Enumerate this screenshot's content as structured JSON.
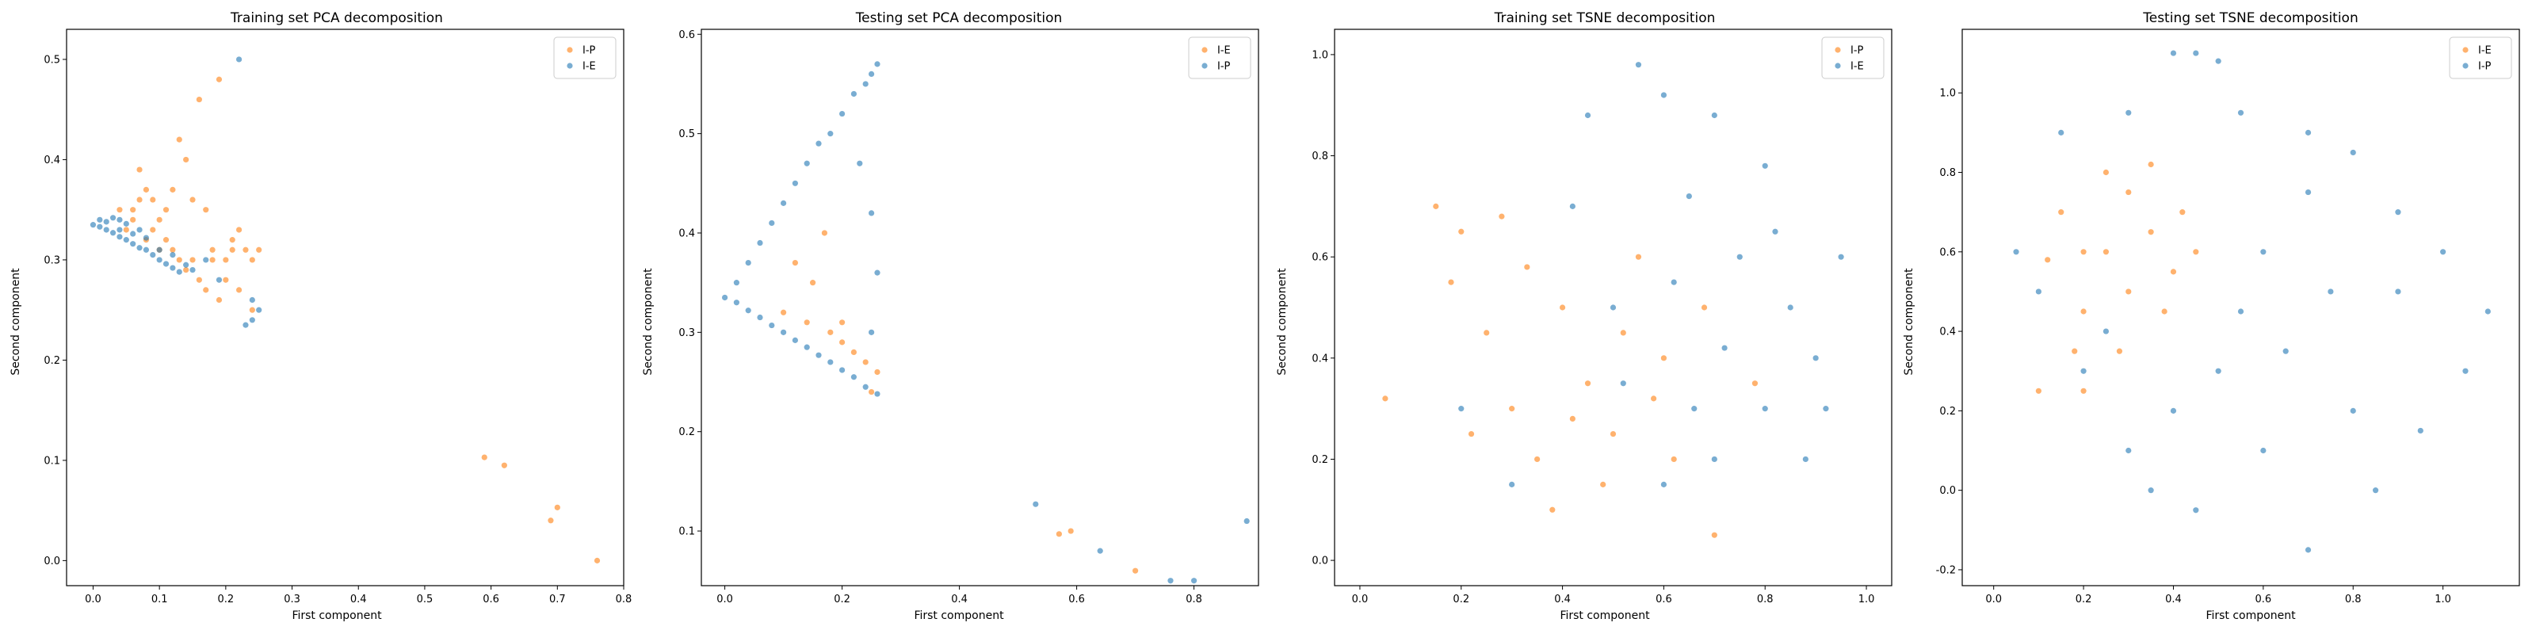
{
  "figure": {
    "panels": [
      {
        "title": "Training set PCA decomposition",
        "xlabel": "First component",
        "ylabel": "Second component"
      },
      {
        "title": "Testing set PCA decomposition",
        "xlabel": "First component",
        "ylabel": "Second component"
      },
      {
        "title": "Training set TSNE decomposition",
        "xlabel": "First component",
        "ylabel": "Second component"
      },
      {
        "title": "Testing set TSNE decomposition",
        "xlabel": "First component",
        "ylabel": "Second component"
      }
    ]
  },
  "chart_data": [
    {
      "type": "scatter",
      "title": "Training set PCA decomposition",
      "xlabel": "First component",
      "ylabel": "Second component",
      "xlim": [
        -0.04,
        0.8
      ],
      "ylim": [
        -0.025,
        0.53
      ],
      "xticks": [
        0.0,
        0.1,
        0.2,
        0.3,
        0.4,
        0.5,
        0.6,
        0.7,
        0.8
      ],
      "yticks": [
        0.0,
        0.1,
        0.2,
        0.3,
        0.4,
        0.5
      ],
      "legend_position": "top-right",
      "series": [
        {
          "name": "I-P",
          "color": "#ff7f0e",
          "points": [
            [
              0.05,
              0.33
            ],
            [
              0.06,
              0.35
            ],
            [
              0.07,
              0.36
            ],
            [
              0.08,
              0.37
            ],
            [
              0.07,
              0.39
            ],
            [
              0.09,
              0.33
            ],
            [
              0.1,
              0.31
            ],
            [
              0.11,
              0.32
            ],
            [
              0.12,
              0.31
            ],
            [
              0.13,
              0.3
            ],
            [
              0.14,
              0.29
            ],
            [
              0.15,
              0.3
            ],
            [
              0.16,
              0.28
            ],
            [
              0.17,
              0.27
            ],
            [
              0.18,
              0.3
            ],
            [
              0.19,
              0.26
            ],
            [
              0.2,
              0.28
            ],
            [
              0.21,
              0.31
            ],
            [
              0.22,
              0.33
            ],
            [
              0.23,
              0.31
            ],
            [
              0.24,
              0.3
            ],
            [
              0.25,
              0.31
            ],
            [
              0.12,
              0.37
            ],
            [
              0.13,
              0.42
            ],
            [
              0.14,
              0.4
            ],
            [
              0.15,
              0.36
            ],
            [
              0.16,
              0.46
            ],
            [
              0.19,
              0.48
            ],
            [
              0.17,
              0.35
            ],
            [
              0.21,
              0.32
            ],
            [
              0.22,
              0.27
            ],
            [
              0.24,
              0.25
            ],
            [
              0.06,
              0.34
            ],
            [
              0.08,
              0.32
            ],
            [
              0.1,
              0.34
            ],
            [
              0.04,
              0.35
            ],
            [
              0.09,
              0.36
            ],
            [
              0.11,
              0.35
            ],
            [
              0.18,
              0.31
            ],
            [
              0.2,
              0.3
            ],
            [
              0.59,
              0.103
            ],
            [
              0.62,
              0.095
            ],
            [
              0.69,
              0.04
            ],
            [
              0.7,
              0.053
            ],
            [
              0.76,
              0.0
            ]
          ]
        },
        {
          "name": "I-E",
          "color": "#1f77b4",
          "points": [
            [
              0.0,
              0.335
            ],
            [
              0.01,
              0.333
            ],
            [
              0.02,
              0.33
            ],
            [
              0.03,
              0.327
            ],
            [
              0.04,
              0.323
            ],
            [
              0.05,
              0.32
            ],
            [
              0.06,
              0.316
            ],
            [
              0.07,
              0.312
            ],
            [
              0.08,
              0.31
            ],
            [
              0.09,
              0.305
            ],
            [
              0.1,
              0.3
            ],
            [
              0.11,
              0.296
            ],
            [
              0.12,
              0.292
            ],
            [
              0.13,
              0.288
            ],
            [
              0.02,
              0.338
            ],
            [
              0.04,
              0.34
            ],
            [
              0.05,
              0.336
            ],
            [
              0.07,
              0.33
            ],
            [
              0.06,
              0.326
            ],
            [
              0.08,
              0.322
            ],
            [
              0.03,
              0.342
            ],
            [
              0.01,
              0.34
            ],
            [
              0.04,
              0.33
            ],
            [
              0.1,
              0.31
            ],
            [
              0.12,
              0.305
            ],
            [
              0.14,
              0.295
            ],
            [
              0.15,
              0.29
            ],
            [
              0.17,
              0.3
            ],
            [
              0.19,
              0.28
            ],
            [
              0.22,
              0.5
            ],
            [
              0.24,
              0.26
            ],
            [
              0.24,
              0.24
            ],
            [
              0.25,
              0.25
            ],
            [
              0.23,
              0.235
            ]
          ]
        }
      ]
    },
    {
      "type": "scatter",
      "title": "Testing set PCA decomposition",
      "xlabel": "First component",
      "ylabel": "Second component",
      "xlim": [
        -0.04,
        0.91
      ],
      "ylim": [
        0.045,
        0.605
      ],
      "xticks": [
        0.0,
        0.2,
        0.4,
        0.6,
        0.8
      ],
      "yticks": [
        0.1,
        0.2,
        0.3,
        0.4,
        0.5,
        0.6
      ],
      "legend_position": "top-right",
      "series": [
        {
          "name": "I-E",
          "color": "#ff7f0e",
          "points": [
            [
              0.1,
              0.32
            ],
            [
              0.14,
              0.31
            ],
            [
              0.18,
              0.3
            ],
            [
              0.2,
              0.29
            ],
            [
              0.22,
              0.28
            ],
            [
              0.24,
              0.27
            ],
            [
              0.26,
              0.26
            ],
            [
              0.25,
              0.24
            ],
            [
              0.2,
              0.31
            ],
            [
              0.15,
              0.35
            ],
            [
              0.12,
              0.37
            ],
            [
              0.17,
              0.4
            ],
            [
              0.57,
              0.097
            ],
            [
              0.59,
              0.1
            ],
            [
              0.7,
              0.06
            ]
          ]
        },
        {
          "name": "I-P",
          "color": "#1f77b4",
          "points": [
            [
              0.0,
              0.335
            ],
            [
              0.02,
              0.33
            ],
            [
              0.04,
              0.322
            ],
            [
              0.06,
              0.315
            ],
            [
              0.08,
              0.307
            ],
            [
              0.1,
              0.3
            ],
            [
              0.12,
              0.292
            ],
            [
              0.14,
              0.285
            ],
            [
              0.16,
              0.277
            ],
            [
              0.18,
              0.27
            ],
            [
              0.2,
              0.262
            ],
            [
              0.22,
              0.255
            ],
            [
              0.24,
              0.245
            ],
            [
              0.26,
              0.238
            ],
            [
              0.02,
              0.35
            ],
            [
              0.04,
              0.37
            ],
            [
              0.06,
              0.39
            ],
            [
              0.08,
              0.41
            ],
            [
              0.1,
              0.43
            ],
            [
              0.12,
              0.45
            ],
            [
              0.14,
              0.47
            ],
            [
              0.16,
              0.49
            ],
            [
              0.18,
              0.5
            ],
            [
              0.2,
              0.52
            ],
            [
              0.22,
              0.54
            ],
            [
              0.24,
              0.55
            ],
            [
              0.26,
              0.57
            ],
            [
              0.25,
              0.56
            ],
            [
              0.23,
              0.47
            ],
            [
              0.25,
              0.42
            ],
            [
              0.26,
              0.36
            ],
            [
              0.25,
              0.3
            ],
            [
              0.53,
              0.127
            ],
            [
              0.64,
              0.08
            ],
            [
              0.76,
              0.05
            ],
            [
              0.8,
              0.05
            ],
            [
              0.89,
              0.11
            ]
          ]
        }
      ]
    },
    {
      "type": "scatter",
      "title": "Training set TSNE decomposition",
      "xlabel": "First component",
      "ylabel": "Second component",
      "xlim": [
        -0.05,
        1.05
      ],
      "ylim": [
        -0.05,
        1.05
      ],
      "xticks": [
        0.0,
        0.2,
        0.4,
        0.6,
        0.8,
        1.0
      ],
      "yticks": [
        0.0,
        0.2,
        0.4,
        0.6,
        0.8,
        1.0
      ],
      "legend_position": "top-right",
      "series": [
        {
          "name": "I-P",
          "color": "#ff7f0e",
          "points": [
            [
              0.15,
              0.7
            ],
            [
              0.2,
              0.65
            ],
            [
              0.25,
              0.45
            ],
            [
              0.3,
              0.3
            ],
            [
              0.35,
              0.2
            ],
            [
              0.4,
              0.5
            ],
            [
              0.45,
              0.35
            ],
            [
              0.5,
              0.25
            ],
            [
              0.55,
              0.6
            ],
            [
              0.6,
              0.4
            ],
            [
              0.05,
              0.32
            ],
            [
              0.18,
              0.55
            ],
            [
              0.28,
              0.68
            ],
            [
              0.38,
              0.1
            ],
            [
              0.48,
              0.15
            ],
            [
              0.52,
              0.45
            ],
            [
              0.62,
              0.2
            ],
            [
              0.7,
              0.05
            ],
            [
              0.22,
              0.25
            ],
            [
              0.33,
              0.58
            ],
            [
              0.42,
              0.28
            ],
            [
              0.58,
              0.32
            ],
            [
              0.68,
              0.5
            ],
            [
              0.78,
              0.35
            ]
          ]
        },
        {
          "name": "I-E",
          "color": "#1f77b4",
          "points": [
            [
              0.55,
              0.98
            ],
            [
              0.6,
              0.92
            ],
            [
              0.45,
              0.88
            ],
            [
              0.7,
              0.88
            ],
            [
              0.8,
              0.78
            ],
            [
              0.65,
              0.72
            ],
            [
              0.75,
              0.6
            ],
            [
              0.85,
              0.5
            ],
            [
              0.9,
              0.4
            ],
            [
              0.8,
              0.3
            ],
            [
              0.7,
              0.2
            ],
            [
              0.6,
              0.15
            ],
            [
              0.5,
              0.5
            ],
            [
              0.95,
              0.6
            ],
            [
              0.88,
              0.2
            ],
            [
              0.72,
              0.42
            ],
            [
              0.62,
              0.55
            ],
            [
              0.82,
              0.65
            ],
            [
              0.42,
              0.7
            ],
            [
              0.52,
              0.35
            ],
            [
              0.66,
              0.3
            ],
            [
              0.92,
              0.3
            ],
            [
              0.3,
              0.15
            ],
            [
              0.2,
              0.3
            ]
          ]
        }
      ]
    },
    {
      "type": "scatter",
      "title": "Testing set TSNE decomposition",
      "xlabel": "First component",
      "ylabel": "Second component",
      "xlim": [
        -0.07,
        1.17
      ],
      "ylim": [
        -0.24,
        1.16
      ],
      "xticks": [
        0.0,
        0.2,
        0.4,
        0.6,
        0.8,
        1.0
      ],
      "yticks": [
        -0.2,
        0.0,
        0.2,
        0.4,
        0.6,
        0.8,
        1.0
      ],
      "legend_position": "top-right",
      "series": [
        {
          "name": "I-E",
          "color": "#ff7f0e",
          "points": [
            [
              0.15,
              0.7
            ],
            [
              0.2,
              0.6
            ],
            [
              0.25,
              0.8
            ],
            [
              0.3,
              0.75
            ],
            [
              0.35,
              0.65
            ],
            [
              0.4,
              0.55
            ],
            [
              0.3,
              0.5
            ],
            [
              0.2,
              0.45
            ],
            [
              0.35,
              0.82
            ],
            [
              0.42,
              0.7
            ],
            [
              0.1,
              0.25
            ],
            [
              0.2,
              0.25
            ],
            [
              0.18,
              0.35
            ],
            [
              0.28,
              0.35
            ],
            [
              0.45,
              0.6
            ],
            [
              0.25,
              0.6
            ],
            [
              0.38,
              0.45
            ],
            [
              0.12,
              0.58
            ]
          ]
        },
        {
          "name": "I-P",
          "color": "#1f77b4",
          "points": [
            [
              0.4,
              1.1
            ],
            [
              0.5,
              1.08
            ],
            [
              0.45,
              1.1
            ],
            [
              0.55,
              0.95
            ],
            [
              0.7,
              0.9
            ],
            [
              0.8,
              0.85
            ],
            [
              0.9,
              0.7
            ],
            [
              1.0,
              0.6
            ],
            [
              1.1,
              0.45
            ],
            [
              1.05,
              0.3
            ],
            [
              0.95,
              0.15
            ],
            [
              0.85,
              0.0
            ],
            [
              0.7,
              -0.15
            ],
            [
              0.6,
              0.1
            ],
            [
              0.5,
              0.3
            ],
            [
              0.4,
              0.2
            ],
            [
              0.3,
              0.1
            ],
            [
              0.2,
              0.3
            ],
            [
              0.1,
              0.5
            ],
            [
              0.05,
              0.6
            ],
            [
              0.15,
              0.9
            ],
            [
              0.3,
              0.95
            ],
            [
              0.6,
              0.6
            ],
            [
              0.75,
              0.5
            ],
            [
              0.55,
              0.45
            ],
            [
              0.65,
              0.35
            ],
            [
              0.45,
              -0.05
            ],
            [
              0.35,
              0.0
            ],
            [
              0.8,
              0.2
            ],
            [
              0.9,
              0.5
            ],
            [
              0.25,
              0.4
            ],
            [
              0.7,
              0.75
            ]
          ]
        }
      ]
    }
  ]
}
